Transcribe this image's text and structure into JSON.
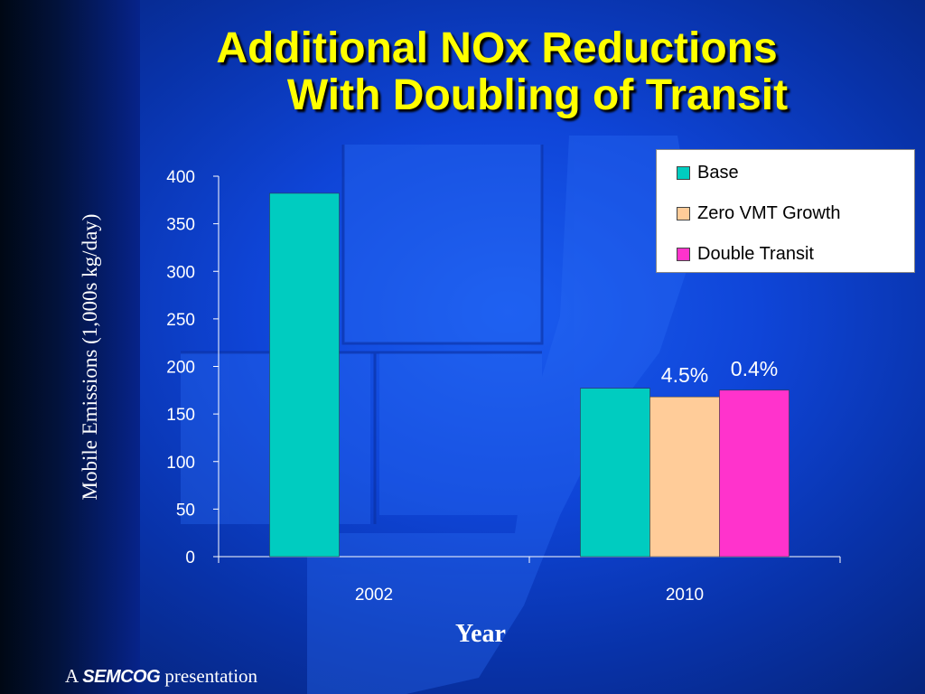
{
  "slide": {
    "title_line1": "Additional NOx Reductions",
    "title_line2": "With Doubling of Transit",
    "footer_prefix": "A",
    "footer_brand": "SEMCOG",
    "footer_suffix": "presentation"
  },
  "chart_data": {
    "type": "bar",
    "title": "",
    "xlabel": "Year",
    "ylabel": "Mobile Emissions (1,000s kg/day)",
    "categories": [
      "2002",
      "2010"
    ],
    "ylim": [
      0,
      400
    ],
    "yticks": [
      0,
      50,
      100,
      150,
      200,
      250,
      300,
      350,
      400
    ],
    "series": [
      {
        "name": "Base",
        "color": "#00ccc0",
        "values": [
          382,
          177
        ]
      },
      {
        "name": "Zero VMT Growth",
        "color": "#ffcc99",
        "values": [
          null,
          168
        ]
      },
      {
        "name": "Double Transit",
        "color": "#ff33cc",
        "values": [
          null,
          175
        ]
      }
    ],
    "annotations": [
      {
        "text": "4.5%",
        "category": "2010",
        "series": "Zero VMT Growth"
      },
      {
        "text": "0.4%",
        "category": "2010",
        "series": "Double Transit"
      }
    ],
    "legend_position": "top-right",
    "grid": false
  }
}
